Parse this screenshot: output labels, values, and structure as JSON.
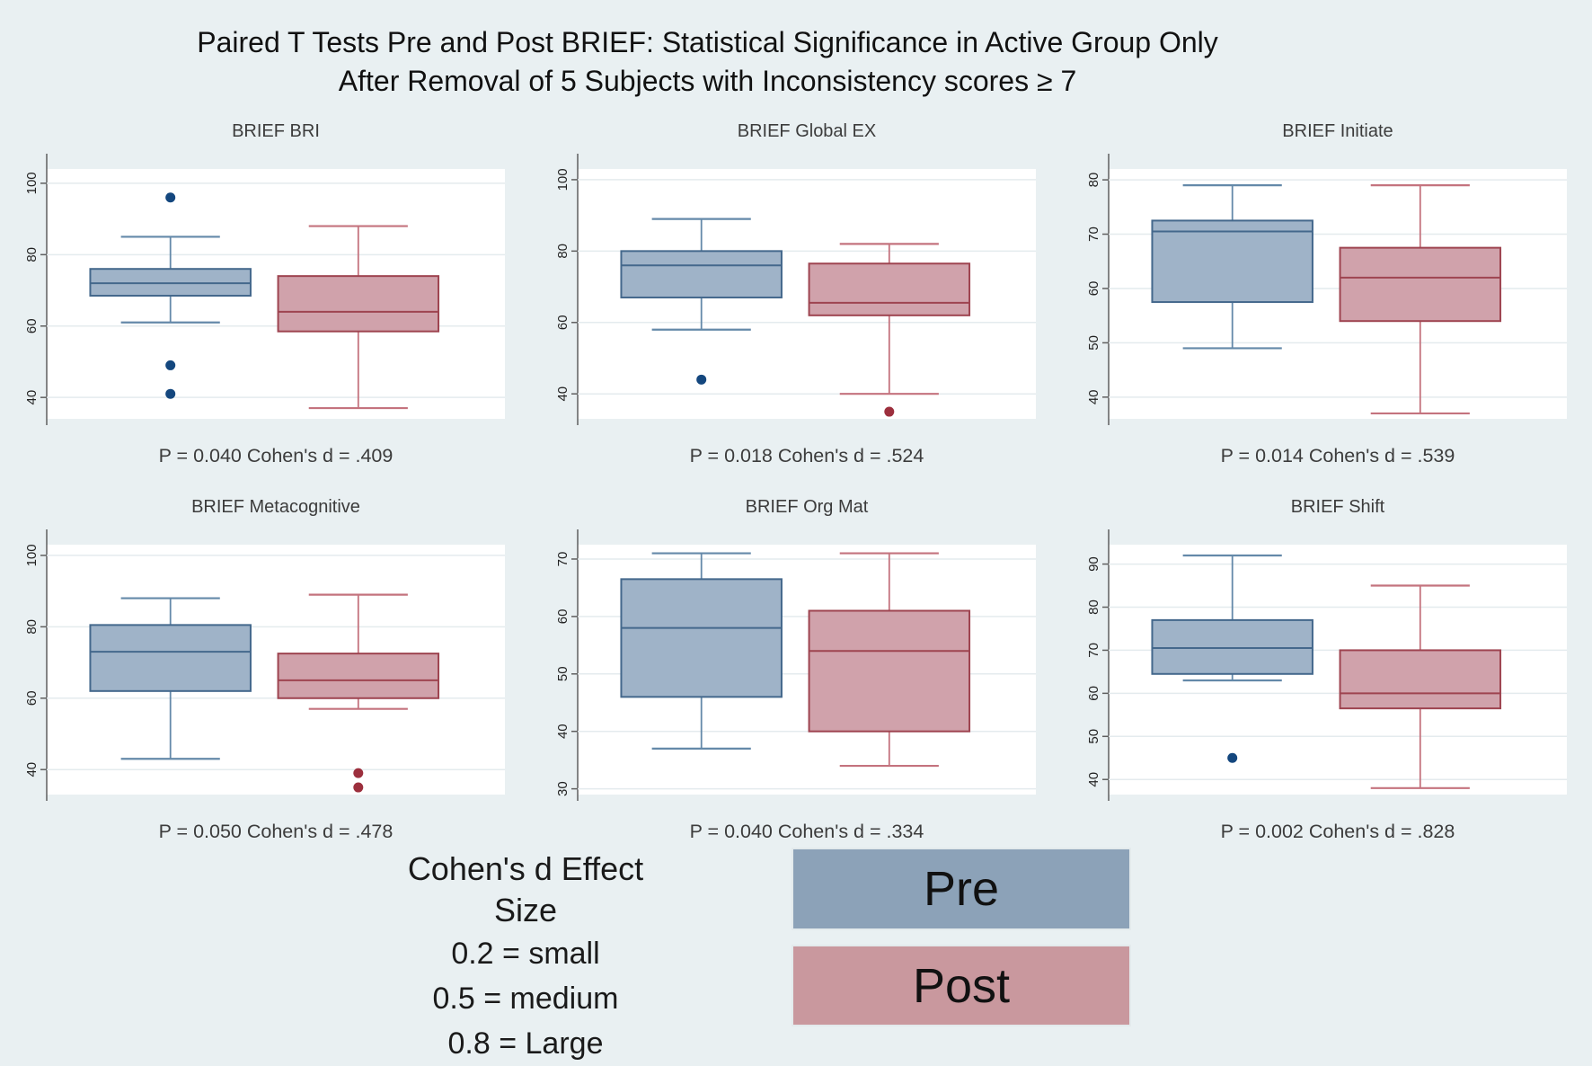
{
  "title": {
    "line1": "Paired T Tests Pre and Post BRIEF: Statistical Significance in Active Group Only",
    "line2": "After Removal of 5 Subjects with Inconsistency scores ≥ 7"
  },
  "legend": {
    "note_title": "Cohen's d Effect Size",
    "note_lines": [
      "0.2 = small",
      "0.5 = medium",
      "0.8 = Large"
    ],
    "pre_label": "Pre",
    "post_label": "Post"
  },
  "colors": {
    "background": "#E9F0F2",
    "plot_bg": "#FFFFFF",
    "grid": "#E4EBEE",
    "axis": "#5f5f5f",
    "tick_label": "#222222",
    "subplot_text": "#3c3c3c",
    "pre_fill": "#9FB3C8",
    "pre_edge": "#44688C",
    "pre_whisker": "#6489A9",
    "pre_outlier": "#14477E",
    "post_fill": "#D0A2AB",
    "post_edge": "#9E4450",
    "post_whisker": "#C4737E",
    "post_outlier": "#9C2F3D",
    "legend_pre": "#8CA2B8",
    "legend_post": "#C9989E"
  },
  "chart_data": {
    "type": "boxplot-grid",
    "rows": 2,
    "cols": 3,
    "groups": [
      "Pre",
      "Post"
    ],
    "grid_on": true,
    "subplots": [
      {
        "title": "BRIEF BRI",
        "caption": "P = 0.040 Cohen's d = .409",
        "ylim": [
          34,
          104
        ],
        "yticks": [
          40,
          60,
          80,
          100
        ],
        "series": [
          {
            "name": "Pre",
            "whisker_low": 61,
            "q1": 68.5,
            "median": 72,
            "q3": 76,
            "whisker_high": 85,
            "outliers": [
              96,
              49,
              41
            ]
          },
          {
            "name": "Post",
            "whisker_low": 37,
            "q1": 58.5,
            "median": 64,
            "q3": 74,
            "whisker_high": 88,
            "outliers": []
          }
        ]
      },
      {
        "title": "BRIEF Global EX",
        "caption": "P = 0.018 Cohen's d = .524",
        "ylim": [
          33,
          103
        ],
        "yticks": [
          40,
          60,
          80,
          100
        ],
        "series": [
          {
            "name": "Pre",
            "whisker_low": 58,
            "q1": 67,
            "median": 76,
            "q3": 80,
            "whisker_high": 89,
            "outliers": [
              44
            ]
          },
          {
            "name": "Post",
            "whisker_low": 40,
            "q1": 62,
            "median": 65.5,
            "q3": 76.5,
            "whisker_high": 82,
            "outliers": [
              35
            ]
          }
        ]
      },
      {
        "title": "BRIEF Initiate",
        "caption": "P = 0.014 Cohen's d = .539",
        "ylim": [
          36,
          82
        ],
        "yticks": [
          40,
          50,
          60,
          70,
          80
        ],
        "series": [
          {
            "name": "Pre",
            "whisker_low": 49,
            "q1": 57.5,
            "median": 70.5,
            "q3": 72.5,
            "whisker_high": 79,
            "outliers": []
          },
          {
            "name": "Post",
            "whisker_low": 37,
            "q1": 54,
            "median": 62,
            "q3": 67.5,
            "whisker_high": 79,
            "outliers": []
          }
        ]
      },
      {
        "title": "BRIEF Metacognitive",
        "caption": "P = 0.050 Cohen's d = .478",
        "ylim": [
          33,
          103
        ],
        "yticks": [
          40,
          60,
          80,
          100
        ],
        "series": [
          {
            "name": "Pre",
            "whisker_low": 43,
            "q1": 62,
            "median": 73,
            "q3": 80.5,
            "whisker_high": 88,
            "outliers": []
          },
          {
            "name": "Post",
            "whisker_low": 57,
            "q1": 60,
            "median": 65,
            "q3": 72.5,
            "whisker_high": 89,
            "outliers": [
              39,
              35
            ]
          }
        ]
      },
      {
        "title": "BRIEF Org Mat",
        "caption": "P = 0.040 Cohen's d = .334",
        "ylim": [
          29,
          72.5
        ],
        "yticks": [
          30,
          40,
          50,
          60,
          70
        ],
        "series": [
          {
            "name": "Pre",
            "whisker_low": 37,
            "q1": 46,
            "median": 58,
            "q3": 66.5,
            "whisker_high": 71,
            "outliers": []
          },
          {
            "name": "Post",
            "whisker_low": 34,
            "q1": 40,
            "median": 54,
            "q3": 61,
            "whisker_high": 71,
            "outliers": []
          }
        ]
      },
      {
        "title": "BRIEF Shift",
        "caption": "P = 0.002 Cohen's d = .828",
        "ylim": [
          36.5,
          94.5
        ],
        "yticks": [
          40,
          50,
          60,
          70,
          80,
          90
        ],
        "series": [
          {
            "name": "Pre",
            "whisker_low": 63,
            "q1": 64.5,
            "median": 70.5,
            "q3": 77,
            "whisker_high": 92,
            "outliers": [
              45
            ]
          },
          {
            "name": "Post",
            "whisker_low": 38,
            "q1": 56.5,
            "median": 60,
            "q3": 70,
            "whisker_high": 85,
            "outliers": []
          }
        ]
      }
    ]
  }
}
